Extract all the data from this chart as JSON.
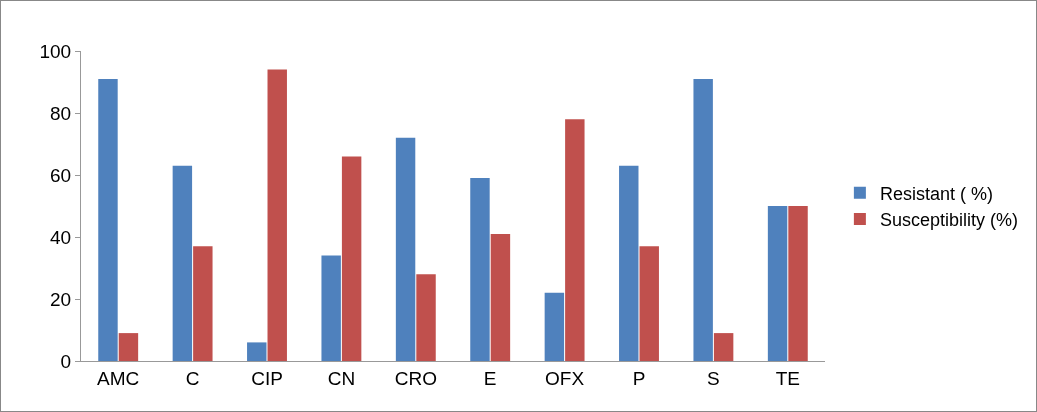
{
  "chart_data": {
    "type": "bar",
    "categories": [
      "AMC",
      "C",
      "CIP",
      "CN",
      "CRO",
      "E",
      "OFX",
      "P",
      "S",
      "TE"
    ],
    "series": [
      {
        "name": "Resistant ( %)",
        "color": "#4f81bd",
        "values": [
          91,
          63,
          6,
          34,
          72,
          59,
          22,
          63,
          91,
          50
        ]
      },
      {
        "name": "Susceptibility (%)",
        "color": "#c0504d",
        "values": [
          9,
          37,
          94,
          66,
          28,
          41,
          78,
          37,
          9,
          50
        ]
      }
    ],
    "ylim": [
      0,
      100
    ],
    "yticks": [
      0,
      20,
      40,
      60,
      80,
      100
    ],
    "grid": false,
    "legend": "right"
  }
}
